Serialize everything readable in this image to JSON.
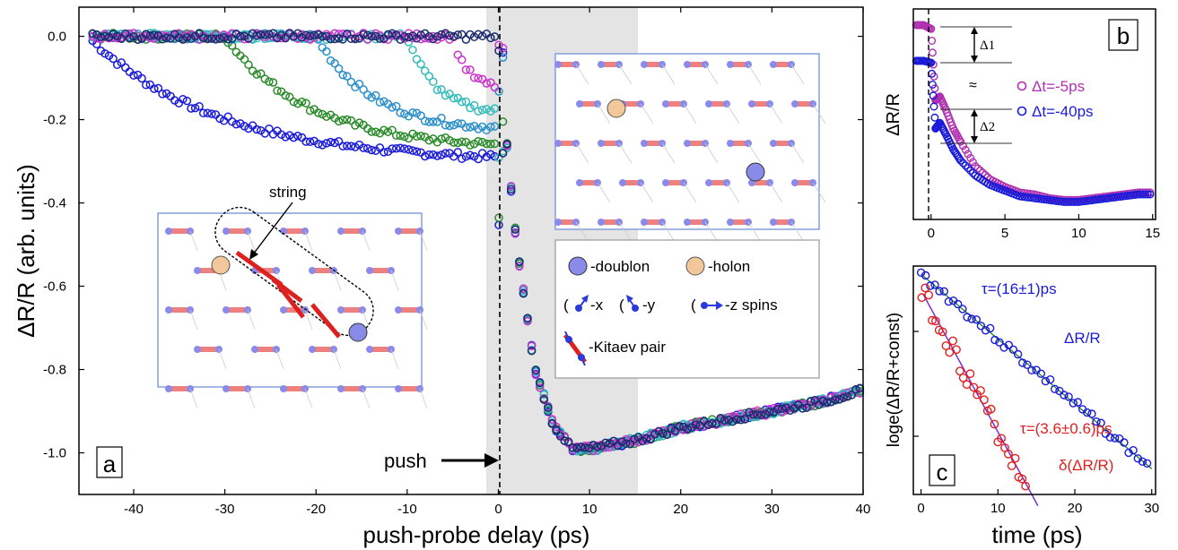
{
  "chart_data": [
    {
      "panel": "a",
      "type": "scatter",
      "xlabel": "push-probe delay (ps)",
      "ylabel": "ΔR/R (arb. units)",
      "xlim": [
        -46,
        40
      ],
      "ylim": [
        -1.1,
        0.07
      ],
      "xticks": [
        -40,
        -30,
        -20,
        -10,
        0,
        10,
        20,
        30,
        40
      ],
      "yticks": [
        0.0,
        -0.2,
        -0.4,
        -0.6,
        -0.8,
        -1.0
      ],
      "ytick_labels": [
        "0.0",
        "-0.2",
        "-0.4",
        "-0.6",
        "-0.8",
        "-1.0"
      ],
      "series": [
        {
          "color": "#1a2a6c",
          "push_ps": 0,
          "plateau": -0.07
        },
        {
          "color": "#cc33cc",
          "push_ps": -5,
          "plateau": -0.12
        },
        {
          "color": "#33bbbb",
          "push_ps": -10,
          "plateau": -0.18
        },
        {
          "color": "#2a8fc9",
          "push_ps": -20,
          "plateau": -0.22
        },
        {
          "color": "#2a8a2a",
          "push_ps": -30,
          "plateau": -0.26
        },
        {
          "color": "#1a1ad9",
          "push_ps": -45,
          "plateau": -0.29
        }
      ],
      "curve_after_zero": {
        "x": [
          0,
          2,
          4,
          6,
          8,
          10,
          15,
          20,
          25,
          30,
          35,
          40
        ],
        "y": [
          -0.05,
          -0.5,
          -0.8,
          -0.93,
          -0.99,
          -0.99,
          -0.97,
          -0.94,
          -0.92,
          -0.9,
          -0.88,
          -0.85
        ]
      },
      "shaded_region": [
        -1.5,
        15
      ],
      "push_label": "push",
      "panel_label": "a"
    },
    {
      "panel": "b",
      "type": "scatter",
      "xlabel": "",
      "ylabel": "ΔR/R",
      "xlim": [
        -1.2,
        15.2
      ],
      "xticks": [
        0,
        5,
        10,
        15
      ],
      "series": [
        {
          "name": "Δt=-5ps",
          "color": "#b030b0",
          "x": [
            -1,
            -0.5,
            0,
            0.3,
            0.6,
            1,
            1.5,
            2,
            3,
            4,
            5,
            6,
            7,
            8,
            9,
            10,
            11,
            12,
            13,
            14,
            15
          ],
          "y": [
            0.0,
            0.0,
            -0.02,
            -0.4,
            -0.38,
            -0.45,
            -0.55,
            -0.62,
            -0.75,
            -0.82,
            -0.86,
            -0.89,
            -0.9,
            -0.92,
            -0.93,
            -0.93,
            -0.92,
            -0.91,
            -0.9,
            -0.89,
            -0.89
          ]
        },
        {
          "name": "Δt=-40ps",
          "color": "#1a1ad9",
          "x": [
            -1,
            -0.5,
            0,
            0.3,
            0.6,
            1,
            1.5,
            2,
            3,
            4,
            5,
            6,
            7,
            8,
            9,
            10,
            11,
            12,
            13,
            14,
            15
          ],
          "y": [
            -0.19,
            -0.19,
            -0.2,
            -0.55,
            -0.52,
            -0.58,
            -0.66,
            -0.72,
            -0.8,
            -0.85,
            -0.88,
            -0.91,
            -0.92,
            -0.93,
            -0.94,
            -0.94,
            -0.93,
            -0.92,
            -0.91,
            -0.9,
            -0.9
          ]
        }
      ],
      "annotations": [
        "Δ1",
        "Δ2",
        "≈"
      ],
      "panel_label": "b"
    },
    {
      "panel": "c",
      "type": "scatter",
      "xlabel": "time (ps)",
      "ylabel": "loge(ΔR/R+const)",
      "xlim": [
        -1,
        30.5
      ],
      "xticks": [
        0,
        10,
        20,
        30
      ],
      "series": [
        {
          "name": "ΔR/R",
          "color": "#1a1ad9",
          "fit_label": "τ=(16±1)ps",
          "tau": 16
        },
        {
          "name": "δ(ΔR/R)",
          "color": "#e02020",
          "fit_label": "τ=(3.6±0.6)ps",
          "tau": 3.6
        }
      ],
      "panel_label": "c"
    }
  ],
  "inset_top": {
    "legend": {
      "doublon": "-doublon",
      "holon": "-holon",
      "x_spin": "-x",
      "y_spin": "-y",
      "z_spin": "-z spins",
      "kitaev": "-Kitaev pair"
    }
  },
  "inset_bottom": {
    "string_label": "string"
  },
  "colors": {
    "doublon": "#7a7ae8",
    "holon": "#f2c79a",
    "kitaev_bond": "#ee8080",
    "spin": "#2a3ad8",
    "shade": "#e4e4e4"
  }
}
